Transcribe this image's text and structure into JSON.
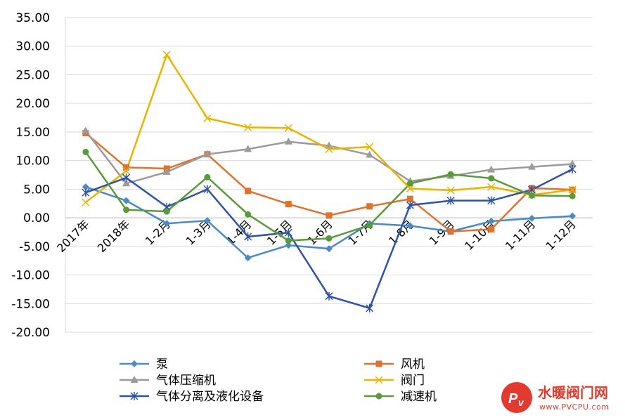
{
  "chart_data": {
    "type": "line",
    "categories": [
      "2017年",
      "2018年",
      "1-2月",
      "1-3月",
      "1-4月",
      "1-5月",
      "1-6月",
      "1-7月",
      "1-8月",
      "1-9月",
      "1-10月",
      "1-11月",
      "1-12月"
    ],
    "ylim": [
      -20,
      35
    ],
    "yticks": [
      "35.00",
      "30.00",
      "25.00",
      "20.00",
      "15.00",
      "10.00",
      "5.00",
      "0.00",
      "-5.00",
      "-10.00",
      "-15.00",
      "-20.00"
    ],
    "grid": true,
    "legend_position": "bottom",
    "series": [
      {
        "name": "泵",
        "color": "#4a8ac6",
        "marker": "diamond",
        "values": [
          5.4,
          3.0,
          -1.0,
          -0.5,
          -7.0,
          -4.8,
          -5.4,
          -1.0,
          -1.4,
          -2.4,
          -0.6,
          -0.1,
          0.3
        ]
      },
      {
        "name": "风机",
        "color": "#e0722d",
        "marker": "square",
        "values": [
          14.8,
          8.8,
          8.6,
          11.1,
          4.7,
          2.4,
          0.4,
          2.0,
          3.3,
          -2.4,
          -2.0,
          5.2,
          4.9
        ]
      },
      {
        "name": "气体压缩机",
        "color": "#9b9b9b",
        "marker": "triangle",
        "values": [
          15.2,
          6.0,
          8.0,
          11.1,
          12.0,
          13.3,
          12.6,
          11.0,
          6.4,
          7.3,
          8.4,
          8.9,
          9.4
        ]
      },
      {
        "name": "阀门",
        "color": "#e7b400",
        "marker": "x",
        "values": [
          2.7,
          8.2,
          28.5,
          17.4,
          15.8,
          15.7,
          12.0,
          12.4,
          5.1,
          4.8,
          5.4,
          4.0,
          4.9
        ]
      },
      {
        "name": "气体分离及液化设备",
        "color": "#2f54a3",
        "marker": "star",
        "values": [
          4.4,
          7.0,
          1.9,
          5.0,
          -3.3,
          -2.6,
          -13.7,
          -15.8,
          2.2,
          3.0,
          3.0,
          4.9,
          8.5
        ]
      },
      {
        "name": "减速机",
        "color": "#5b9a3a",
        "marker": "circle",
        "values": [
          11.5,
          1.4,
          1.1,
          7.1,
          0.6,
          -4.0,
          -3.6,
          -1.3,
          6.0,
          7.6,
          6.9,
          3.9,
          3.8
        ]
      }
    ]
  },
  "watermark": {
    "text": "水暖阀门网",
    "url": "www.PVCPU.com",
    "logo_letters": "PV"
  }
}
